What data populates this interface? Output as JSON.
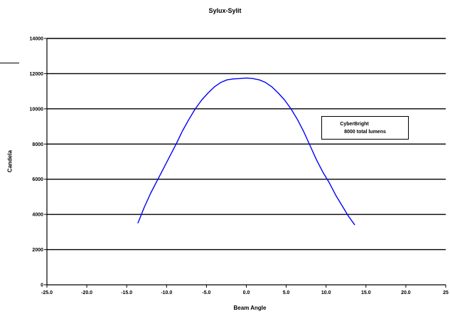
{
  "chart_data": {
    "type": "line",
    "title": "Sylux-Sylit",
    "xlabel": "Beam Angle",
    "ylabel": "Candela",
    "xlim": [
      -25.0,
      25.0
    ],
    "ylim": [
      0,
      14000
    ],
    "xticks": [
      -25.0,
      -20.0,
      -15.0,
      -10.0,
      -5.0,
      0.0,
      5.0,
      10.0,
      15.0,
      20.0,
      25.0
    ],
    "xtick_labels": [
      "-25.0",
      "-20.0",
      "-15.0",
      "-10.0",
      "-5.0",
      "0.0",
      "5.0",
      "10.0",
      "15.0",
      "20.0",
      "25"
    ],
    "yticks": [
      0,
      2000,
      4000,
      6000,
      8000,
      10000,
      12000,
      14000
    ],
    "ytick_labels": [
      "0",
      "2000",
      "4000",
      "6000",
      "8000",
      "10000",
      "12000",
      "14000"
    ],
    "grid": "horizontal",
    "legend_position": "right",
    "series": [
      {
        "name": "CyberBright",
        "color": "#0000ff",
        "x": [
          -13.6,
          -12.8,
          -12.0,
          -11.2,
          -10.4,
          -9.6,
          -8.8,
          -8.0,
          -7.2,
          -6.4,
          -5.6,
          -4.8,
          -4.0,
          -3.2,
          -2.4,
          -1.6,
          -0.8,
          0.0,
          0.8,
          1.6,
          2.4,
          3.2,
          4.0,
          4.8,
          5.6,
          6.4,
          7.2,
          8.0,
          8.8,
          9.6,
          10.4,
          11.2,
          12.0,
          12.8,
          13.6
        ],
        "y": [
          3500,
          4400,
          5200,
          5900,
          6600,
          7300,
          8000,
          8750,
          9400,
          10000,
          10500,
          10900,
          11250,
          11500,
          11650,
          11700,
          11720,
          11750,
          11720,
          11650,
          11500,
          11250,
          10900,
          10500,
          10000,
          9400,
          8700,
          7900,
          7100,
          6400,
          5800,
          5100,
          4500,
          3900,
          3400
        ]
      }
    ]
  },
  "legend": {
    "line1": "CyberBright",
    "line2": "8000 total lumens"
  }
}
